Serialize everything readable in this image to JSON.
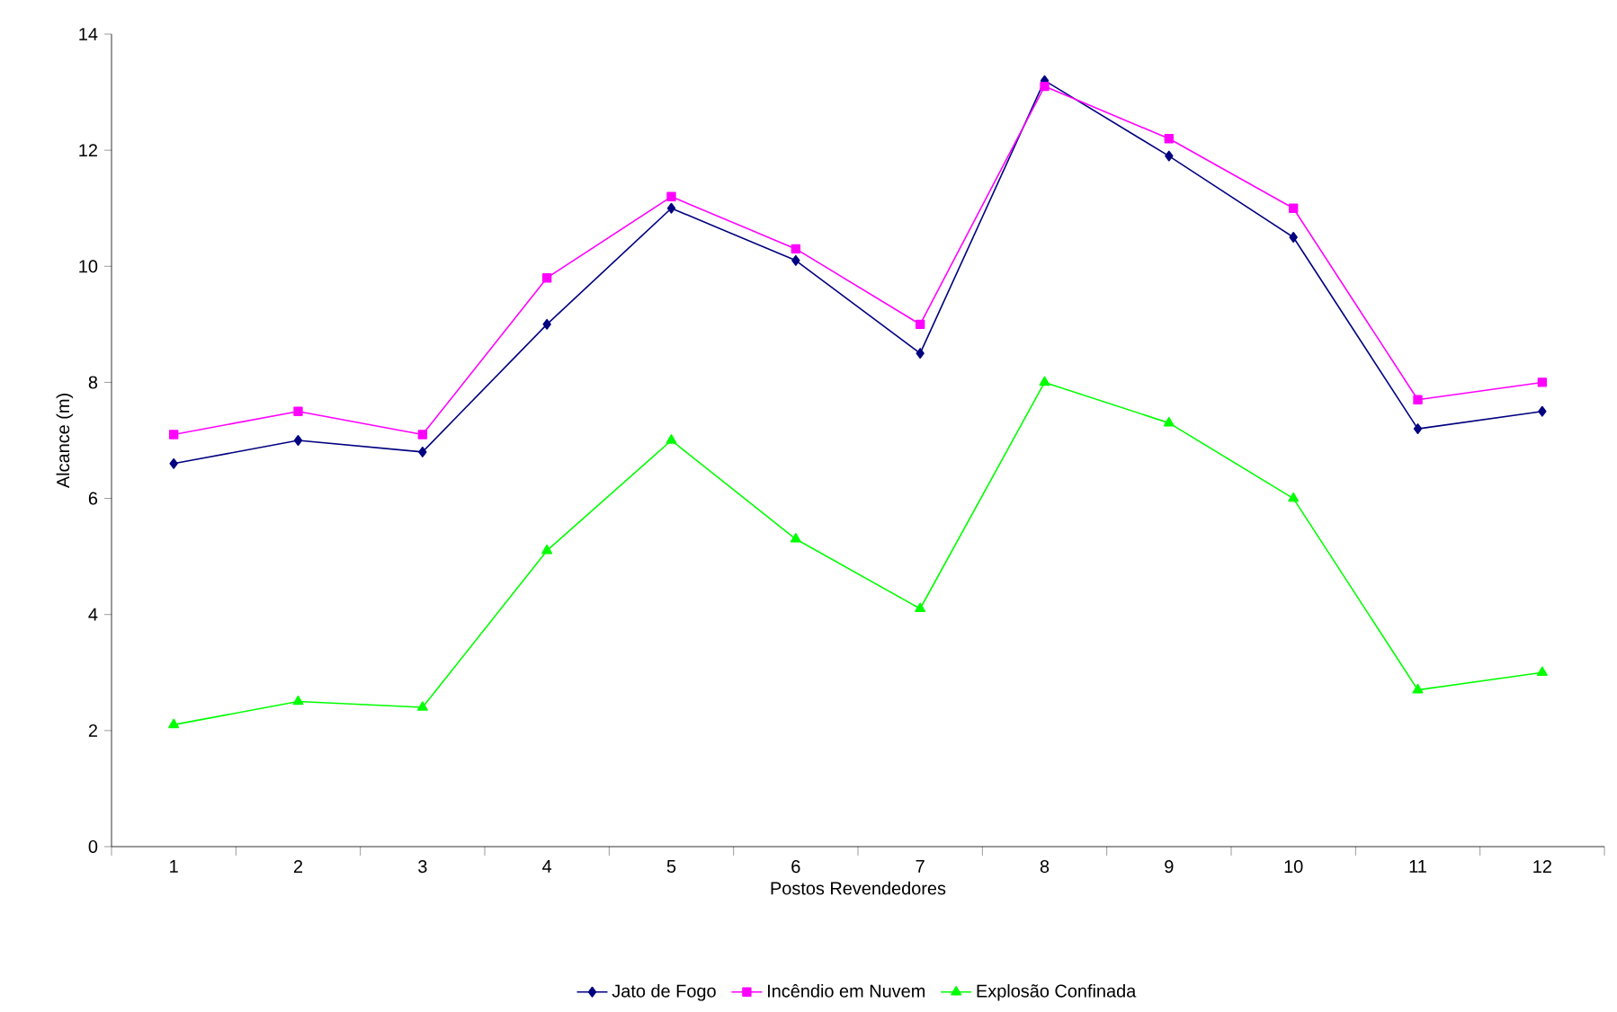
{
  "chart_data": {
    "type": "line",
    "xlabel": "Postos Revendedores",
    "ylabel": "Alcance (m)",
    "categories": [
      "1",
      "2",
      "3",
      "4",
      "5",
      "6",
      "7",
      "8",
      "9",
      "10",
      "11",
      "12"
    ],
    "ylim": [
      0,
      14
    ],
    "yticks": [
      0,
      2,
      4,
      6,
      8,
      10,
      12,
      14
    ],
    "legend": "bottom",
    "grid": false,
    "series": [
      {
        "name": "Jato de Fogo",
        "color": "#000080",
        "marker": "diamond",
        "values": [
          6.6,
          7.0,
          6.8,
          9.0,
          11.0,
          10.1,
          8.5,
          13.2,
          11.9,
          10.5,
          7.2,
          7.5
        ]
      },
      {
        "name": "Incêndio em Nuvem",
        "color": "#ff00ff",
        "marker": "square",
        "values": [
          7.1,
          7.5,
          7.1,
          9.8,
          11.2,
          10.3,
          9.0,
          13.1,
          12.2,
          11.0,
          7.7,
          8.0
        ]
      },
      {
        "name": "Explosão Confinada",
        "color": "#00ff00",
        "marker": "triangle",
        "values": [
          2.1,
          2.5,
          2.4,
          5.1,
          7.0,
          5.3,
          4.1,
          8.0,
          7.3,
          6.0,
          2.7,
          3.0
        ]
      }
    ]
  }
}
